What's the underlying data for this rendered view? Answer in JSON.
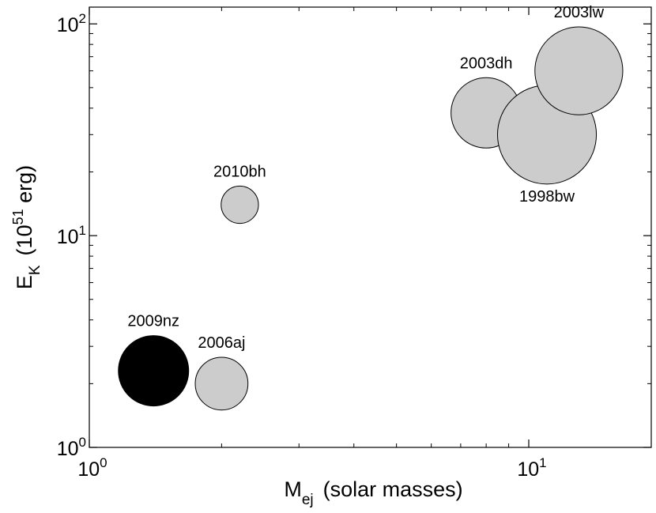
{
  "chart_data": {
    "type": "scatter",
    "title": "",
    "xscale": "log",
    "yscale": "log",
    "xlim": [
      1,
      19
    ],
    "ylim": [
      1,
      120
    ],
    "xlabel": {
      "main": "M",
      "sub": "ej",
      "rest": "(solar masses)"
    },
    "ylabel": {
      "main": "E",
      "sub": "K",
      "paren_open": "(10",
      "sup": "51",
      "rest": " erg)"
    },
    "x_major_ticks": [
      {
        "value": 1,
        "base": "10",
        "exp": "0"
      },
      {
        "value": 10,
        "base": "10",
        "exp": "1"
      }
    ],
    "y_major_ticks": [
      {
        "value": 1,
        "base": "10",
        "exp": "0"
      },
      {
        "value": 10,
        "base": "10",
        "exp": "1"
      },
      {
        "value": 100,
        "base": "10",
        "exp": "2"
      }
    ],
    "points": [
      {
        "label": "2009nz",
        "x": 1.4,
        "y": 2.3,
        "size": 0.32,
        "color": "#000000",
        "label_position": "above"
      },
      {
        "label": "2006aj",
        "x": 2.0,
        "y": 2.0,
        "size": 0.24,
        "color": "#cccccc",
        "label_position": "above"
      },
      {
        "label": "2010bh",
        "x": 2.2,
        "y": 14.0,
        "size": 0.17,
        "color": "#cccccc",
        "label_position": "above"
      },
      {
        "label": "2003dh",
        "x": 8.0,
        "y": 38.0,
        "size": 0.32,
        "color": "#cccccc",
        "label_position": "above"
      },
      {
        "label": "1998bw",
        "x": 11.0,
        "y": 30.0,
        "size": 0.45,
        "color": "#cccccc",
        "label_position": "below"
      },
      {
        "label": "2003lw",
        "x": 13.0,
        "y": 60.0,
        "size": 0.4,
        "color": "#cccccc",
        "label_position": "above"
      }
    ]
  }
}
